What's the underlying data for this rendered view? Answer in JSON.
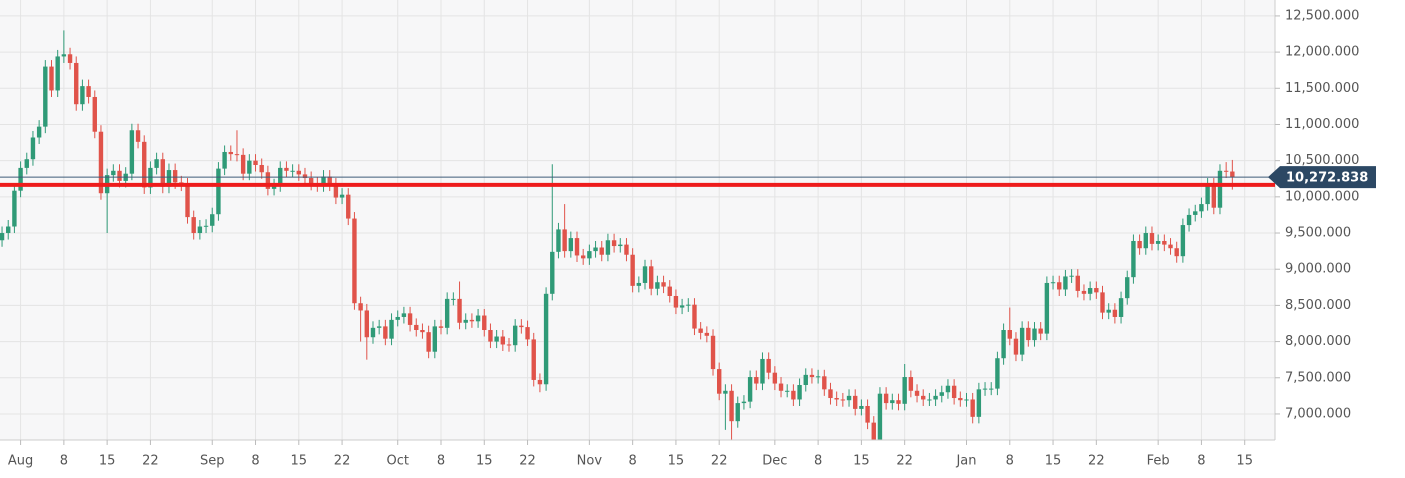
{
  "chart_data": {
    "type": "candlestick",
    "x": [
      -3,
      -2,
      -1,
      0,
      1,
      2,
      3,
      4,
      5,
      6,
      7,
      8,
      9,
      10,
      11,
      12,
      13,
      14,
      15,
      16,
      17,
      18,
      19,
      20,
      21,
      22,
      23,
      24,
      25,
      26,
      27,
      28,
      29,
      30,
      31,
      32,
      33,
      34,
      35,
      36,
      37,
      38,
      39,
      40,
      41,
      42,
      43,
      44,
      45,
      46,
      47,
      48,
      49,
      50,
      51,
      52,
      53,
      54,
      55,
      56,
      57,
      58,
      59,
      60,
      61,
      62,
      63,
      64,
      65,
      66,
      67,
      68,
      69,
      70,
      71,
      72,
      73,
      74,
      75,
      76,
      77,
      78,
      79,
      80,
      81,
      82,
      83,
      84,
      85,
      86,
      87,
      88,
      89,
      90,
      91,
      92,
      93,
      94,
      95,
      96,
      97,
      98,
      99,
      100,
      101,
      102,
      103,
      104,
      105,
      106,
      107,
      108,
      109,
      110,
      111,
      112,
      113,
      114,
      115,
      116,
      117,
      118,
      119,
      120,
      121,
      122,
      123,
      124,
      125,
      126,
      127,
      128,
      129,
      130,
      131,
      132,
      133,
      134,
      135,
      136,
      137,
      138,
      139,
      140,
      141,
      142,
      143,
      144,
      145,
      146,
      147,
      148,
      149,
      150,
      151,
      152,
      153,
      154,
      155,
      156,
      157,
      158,
      159,
      160,
      161,
      162,
      163,
      164,
      165,
      166,
      167,
      168,
      169,
      170,
      171,
      172,
      173,
      174,
      175,
      176,
      177,
      178,
      179,
      180,
      181,
      182,
      183,
      184,
      185,
      186,
      187,
      188,
      189,
      190,
      191,
      192,
      193,
      194,
      195,
      196
    ],
    "open": [
      9400,
      9500,
      9590,
      10085,
      10400,
      10520,
      10820,
      10970,
      11800,
      11470,
      11940,
      11970,
      11850,
      11280,
      11530,
      11380,
      10900,
      10050,
      10300,
      10360,
      10220,
      10320,
      10920,
      10760,
      10130,
      10400,
      10520,
      10140,
      10370,
      10200,
      10170,
      9720,
      9500,
      9590,
      9600,
      9760,
      10390,
      10620,
      10590,
      10580,
      10320,
      10500,
      10440,
      10340,
      10110,
      10160,
      10400,
      10360,
      10360,
      10310,
      10260,
      10180,
      10160,
      10280,
      10170,
      9990,
      10030,
      9700,
      8530,
      8430,
      8060,
      8190,
      8210,
      8040,
      8300,
      8340,
      8390,
      8230,
      8160,
      8130,
      7860,
      8210,
      8190,
      8590,
      8590,
      8260,
      8300,
      8280,
      8360,
      8160,
      8000,
      8070,
      7960,
      7950,
      8220,
      8200,
      8030,
      7470,
      7410,
      8660,
      9240,
      9550,
      9250,
      9430,
      9190,
      9150,
      9250,
      9300,
      9200,
      9400,
      9320,
      9340,
      9200,
      8770,
      8810,
      9040,
      8730,
      8820,
      8760,
      8630,
      8470,
      8500,
      8510,
      8180,
      8120,
      8080,
      7620,
      7280,
      7320,
      6900,
      7150,
      7170,
      7510,
      7420,
      7760,
      7570,
      7420,
      7320,
      7320,
      7200,
      7400,
      7540,
      7510,
      7520,
      7340,
      7220,
      7200,
      7190,
      7250,
      7070,
      7110,
      6880,
      6620,
      7280,
      7150,
      7190,
      7140,
      7510,
      7320,
      7250,
      7200,
      7200,
      7250,
      7300,
      7390,
      7220,
      7190,
      7200,
      6960,
      7340,
      7350,
      7350,
      7770,
      8160,
      8040,
      7820,
      8190,
      8020,
      8180,
      8110,
      8810,
      8820,
      8720,
      8900,
      8910,
      8700,
      8660,
      8740,
      8680,
      8400,
      8440,
      8340,
      8600,
      8890,
      9390,
      9290,
      9500,
      9350,
      9390,
      9340,
      9290,
      9180,
      9610,
      9750,
      9800,
      9900,
      10170,
      9850,
      10360,
      10350
    ],
    "high": [
      9590,
      9680,
      10175,
      10490,
      10610,
      10910,
      11060,
      11890,
      11890,
      12030,
      12300,
      12060,
      11940,
      11620,
      11620,
      11470,
      10990,
      10390,
      10450,
      10450,
      10410,
      11010,
      11010,
      10850,
      10490,
      10610,
      10610,
      10460,
      10460,
      10290,
      10260,
      9810,
      9680,
      9690,
      9850,
      10480,
      10710,
      10710,
      10920,
      10670,
      10590,
      10590,
      10530,
      10430,
      10250,
      10490,
      10490,
      10450,
      10450,
      10400,
      10350,
      10270,
      10370,
      10370,
      10260,
      10120,
      10120,
      9790,
      8620,
      8520,
      8280,
      8300,
      8300,
      8390,
      8430,
      8480,
      8480,
      8320,
      8250,
      8220,
      8300,
      8300,
      8680,
      8680,
      8830,
      8390,
      8390,
      8450,
      8450,
      8250,
      8160,
      8160,
      8050,
      8310,
      8310,
      8290,
      8120,
      7560,
      8750,
      10450,
      9640,
      9900,
      9520,
      9520,
      9280,
      9340,
      9390,
      9390,
      9490,
      9490,
      9430,
      9430,
      9290,
      8900,
      9130,
      9130,
      8910,
      8910,
      8850,
      8720,
      8590,
      8600,
      8600,
      8270,
      8210,
      8170,
      7710,
      7410,
      7410,
      7240,
      7260,
      7600,
      7600,
      7850,
      7850,
      7660,
      7510,
      7410,
      7410,
      7490,
      7630,
      7630,
      7610,
      7610,
      7430,
      7310,
      7290,
      7340,
      7340,
      7200,
      7200,
      6970,
      7370,
      7370,
      7280,
      7280,
      7690,
      7600,
      7410,
      7340,
      7290,
      7340,
      7390,
      7480,
      7480,
      7310,
      7290,
      7290,
      7430,
      7440,
      7440,
      7860,
      8250,
      8470,
      8130,
      8280,
      8280,
      8270,
      8270,
      8900,
      8910,
      8910,
      8990,
      9000,
      9000,
      8790,
      8830,
      8830,
      8770,
      8530,
      8530,
      8690,
      8980,
      9480,
      9480,
      9590,
      9590,
      9480,
      9480,
      9430,
      9380,
      9700,
      9840,
      9890,
      9990,
      10260,
      10260,
      10450,
      10480,
      10510
    ],
    "low": [
      9310,
      9410,
      9500,
      9995,
      10310,
      10430,
      10730,
      10880,
      11380,
      11380,
      11850,
      11760,
      11190,
      11190,
      11290,
      10810,
      9960,
      9500,
      10210,
      10130,
      10130,
      10230,
      10670,
      10040,
      10040,
      10310,
      10050,
      10050,
      10110,
      10080,
      9630,
      9410,
      9410,
      9500,
      9510,
      9670,
      10300,
      10500,
      10490,
      10230,
      10230,
      10350,
      10250,
      10020,
      10020,
      10070,
      10270,
      10270,
      10220,
      10170,
      10090,
      10070,
      10070,
      10080,
      9900,
      9900,
      9610,
      8440,
      8000,
      7750,
      7970,
      8100,
      7950,
      7950,
      8210,
      8250,
      8140,
      8070,
      8040,
      7770,
      7770,
      8100,
      8100,
      8500,
      8170,
      8170,
      8190,
      8190,
      8070,
      7910,
      7910,
      7870,
      7860,
      7860,
      8110,
      7940,
      7380,
      7300,
      7320,
      8570,
      9150,
      9160,
      9160,
      9100,
      9060,
      9060,
      9160,
      9110,
      9110,
      9230,
      9230,
      9110,
      8680,
      8680,
      8720,
      8640,
      8640,
      8670,
      8540,
      8380,
      8380,
      8410,
      8090,
      8030,
      7990,
      7530,
      7190,
      6780,
      6600,
      6810,
      7060,
      7080,
      7330,
      7330,
      7480,
      7330,
      7230,
      7230,
      7110,
      7110,
      7310,
      7420,
      7420,
      7250,
      7130,
      7110,
      7100,
      7100,
      6980,
      6980,
      6790,
      6530,
      6530,
      7060,
      7060,
      7050,
      7050,
      7230,
      7160,
      7110,
      7110,
      7110,
      7160,
      7210,
      7130,
      7100,
      7100,
      6870,
      6870,
      7250,
      7260,
      7260,
      7680,
      7950,
      7730,
      7730,
      7930,
      7930,
      8020,
      8020,
      8720,
      8630,
      8630,
      8810,
      8610,
      8570,
      8570,
      8590,
      8310,
      8310,
      8250,
      8250,
      8510,
      8800,
      9200,
      9200,
      9260,
      9260,
      9250,
      9200,
      9090,
      9090,
      9520,
      9660,
      9710,
      9810,
      9760,
      9760,
      10260,
      10100
    ],
    "close": [
      9500,
      9590,
      10085,
      10400,
      10520,
      10820,
      10970,
      11800,
      11470,
      11940,
      11970,
      11850,
      11280,
      11530,
      11380,
      10900,
      10050,
      10300,
      10360,
      10220,
      10320,
      10920,
      10760,
      10130,
      10400,
      10520,
      10140,
      10370,
      10200,
      10170,
      9720,
      9500,
      9590,
      9600,
      9760,
      10390,
      10620,
      10590,
      10580,
      10320,
      10500,
      10440,
      10340,
      10110,
      10160,
      10400,
      10360,
      10360,
      10310,
      10260,
      10180,
      10160,
      10280,
      10170,
      9990,
      10030,
      9700,
      8530,
      8430,
      8060,
      8190,
      8210,
      8040,
      8300,
      8340,
      8390,
      8230,
      8160,
      8130,
      7860,
      8210,
      8190,
      8590,
      8590,
      8260,
      8300,
      8280,
      8360,
      8160,
      8000,
      8070,
      7960,
      7950,
      8220,
      8200,
      8030,
      7470,
      7410,
      8660,
      9240,
      9550,
      9250,
      9430,
      9190,
      9150,
      9250,
      9300,
      9200,
      9400,
      9320,
      9340,
      9200,
      8770,
      8810,
      9040,
      8730,
      8820,
      8760,
      8630,
      8470,
      8500,
      8510,
      8180,
      8120,
      8080,
      7620,
      7280,
      7320,
      6900,
      7150,
      7170,
      7510,
      7420,
      7760,
      7570,
      7420,
      7320,
      7320,
      7200,
      7400,
      7540,
      7510,
      7520,
      7340,
      7220,
      7200,
      7190,
      7250,
      7070,
      7110,
      6880,
      6620,
      7280,
      7150,
      7190,
      7140,
      7510,
      7320,
      7250,
      7200,
      7200,
      7250,
      7300,
      7390,
      7220,
      7190,
      7200,
      6960,
      7340,
      7350,
      7350,
      7770,
      8160,
      8040,
      7820,
      8190,
      8020,
      8180,
      8110,
      8810,
      8820,
      8720,
      8900,
      8910,
      8700,
      8660,
      8740,
      8680,
      8400,
      8440,
      8340,
      8600,
      8890,
      9390,
      9290,
      9500,
      9350,
      9390,
      9340,
      9290,
      9180,
      9610,
      9750,
      9800,
      9900,
      10170,
      9850,
      10360,
      10350,
      10272.838
    ],
    "up_color": "#2f9a77",
    "down_color": "#e0534a",
    "last_price": {
      "value": 10272.838,
      "label": "10,272.838"
    },
    "hline": {
      "value": 10165,
      "color": "#ee1c1c"
    },
    "xlim": [
      -3.33,
      202.9
    ],
    "ylim": [
      6640,
      12720
    ],
    "xticks": [
      {
        "value": 0,
        "label": "Aug"
      },
      {
        "value": 7,
        "label": "8"
      },
      {
        "value": 14,
        "label": "15"
      },
      {
        "value": 21,
        "label": "22"
      },
      {
        "value": 31,
        "label": "Sep"
      },
      {
        "value": 38,
        "label": "8"
      },
      {
        "value": 45,
        "label": "15"
      },
      {
        "value": 52,
        "label": "22"
      },
      {
        "value": 61,
        "label": "Oct"
      },
      {
        "value": 68,
        "label": "8"
      },
      {
        "value": 75,
        "label": "15"
      },
      {
        "value": 82,
        "label": "22"
      },
      {
        "value": 92,
        "label": "Nov"
      },
      {
        "value": 99,
        "label": "8"
      },
      {
        "value": 106,
        "label": "15"
      },
      {
        "value": 113,
        "label": "22"
      },
      {
        "value": 122,
        "label": "Dec"
      },
      {
        "value": 129,
        "label": "8"
      },
      {
        "value": 136,
        "label": "15"
      },
      {
        "value": 143,
        "label": "22"
      },
      {
        "value": 153,
        "label": "Jan"
      },
      {
        "value": 160,
        "label": "8"
      },
      {
        "value": 167,
        "label": "15"
      },
      {
        "value": 174,
        "label": "22"
      },
      {
        "value": 184,
        "label": "Feb"
      },
      {
        "value": 191,
        "label": "8"
      },
      {
        "value": 198,
        "label": "15"
      }
    ],
    "yticks": [
      {
        "value": 7000,
        "label": "7,000.000"
      },
      {
        "value": 7500,
        "label": "7,500.000"
      },
      {
        "value": 8000,
        "label": "8,000.000"
      },
      {
        "value": 8500,
        "label": "8,500.000"
      },
      {
        "value": 9000,
        "label": "9,000.000"
      },
      {
        "value": 9500,
        "label": "9,500.000"
      },
      {
        "value": 10000,
        "label": "10,000.000"
      },
      {
        "value": 10500,
        "label": "10,500.000"
      },
      {
        "value": 11000,
        "label": "11,000.000"
      },
      {
        "value": 11500,
        "label": "11,500.000"
      },
      {
        "value": 12000,
        "label": "12,000.000"
      },
      {
        "value": 12500,
        "label": "12,500.000"
      }
    ],
    "grid": true
  }
}
